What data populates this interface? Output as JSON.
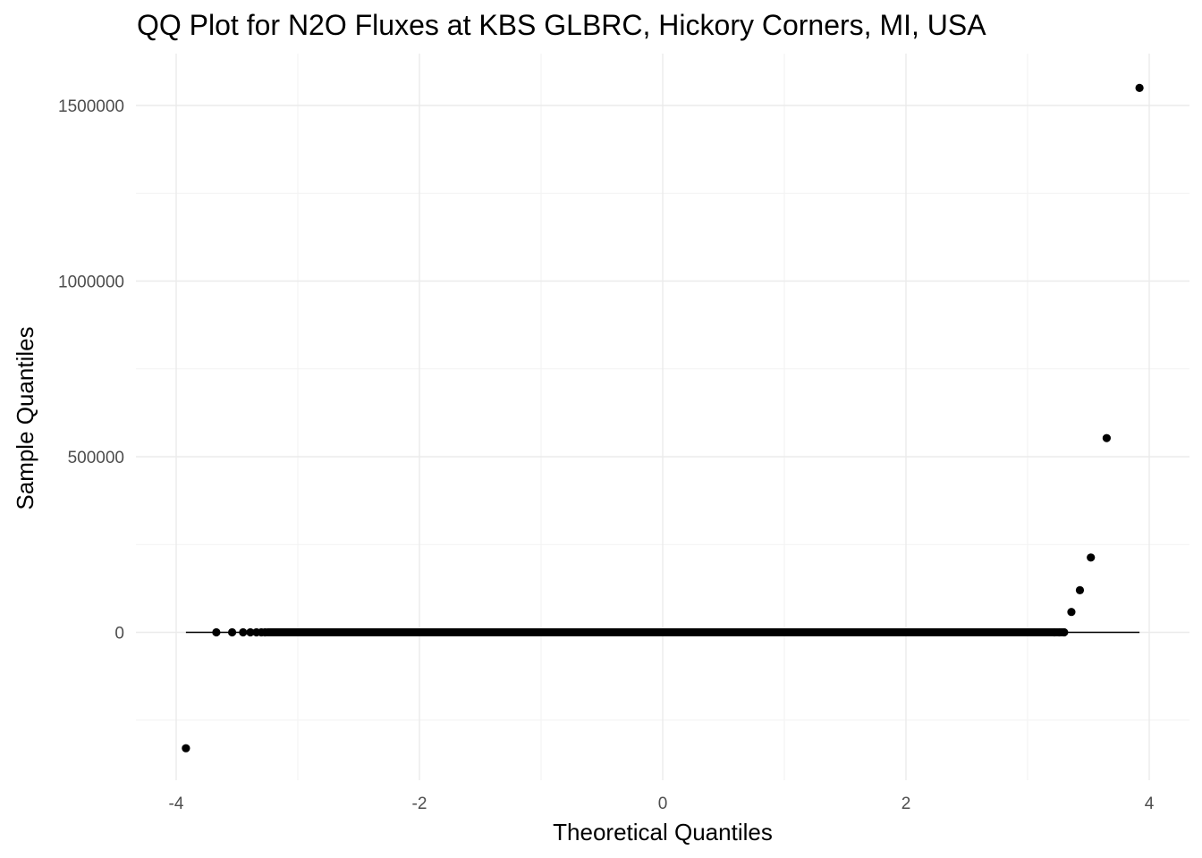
{
  "chart_data": {
    "type": "scatter",
    "title": "QQ Plot for N2O Fluxes at KBS GLBRC, Hickory Corners, MI, USA",
    "xlabel": "Theoretical Quantiles",
    "ylabel": "Sample Quantiles",
    "xlim": [
      -4.1,
      4.1
    ],
    "ylim": [
      -420000,
      1700000
    ],
    "x_ticks": [
      -4,
      -2,
      0,
      2,
      4
    ],
    "x_tick_labels": [
      "-4",
      "-2",
      "0",
      "2",
      "4"
    ],
    "y_ticks": [
      0,
      500000,
      1000000,
      1500000
    ],
    "y_tick_labels": [
      "0",
      "500000",
      "1000000",
      "1500000"
    ],
    "grid": true,
    "reference_line": {
      "x": [
        -3.92,
        3.92
      ],
      "y": [
        0,
        0
      ]
    },
    "dense_band": {
      "x_start": -3.25,
      "x_end": 3.3,
      "y": 0
    },
    "points": [
      {
        "x": -3.92,
        "y": -330000
      },
      {
        "x": -3.67,
        "y": 0
      },
      {
        "x": -3.54,
        "y": 0
      },
      {
        "x": -3.45,
        "y": 0
      },
      {
        "x": -3.39,
        "y": 0
      },
      {
        "x": -3.34,
        "y": 0
      },
      {
        "x": -3.3,
        "y": 0
      },
      {
        "x": -3.27,
        "y": 0
      },
      {
        "x": 3.22,
        "y": 0
      },
      {
        "x": 3.26,
        "y": 0
      },
      {
        "x": 3.3,
        "y": 0
      },
      {
        "x": 3.36,
        "y": 58000
      },
      {
        "x": 3.43,
        "y": 120000
      },
      {
        "x": 3.52,
        "y": 213000
      },
      {
        "x": 3.65,
        "y": 553000
      },
      {
        "x": 3.92,
        "y": 1550000
      }
    ]
  }
}
